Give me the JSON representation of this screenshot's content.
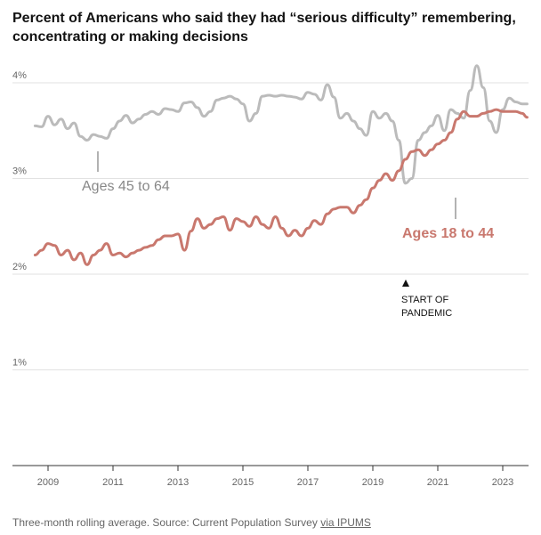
{
  "title": "Percent of Americans who said they had “serious difficulty” remembering, concentrating or making decisions",
  "footer": {
    "note": "Three-month rolling average. Source: Current Population Survey",
    "link": "via IPUMS"
  },
  "chart_data": {
    "type": "line",
    "title": "Percent of Americans who said they had “serious difficulty” remembering, concentrating or making decisions",
    "xlabel": "",
    "ylabel": "",
    "xlim": [
      2008.6,
      2023.75
    ],
    "ylim": [
      0,
      4.2
    ],
    "x_ticks": [
      "2009",
      "2011",
      "2013",
      "2015",
      "2017",
      "2019",
      "2021",
      "2023"
    ],
    "y_ticks": [
      "1%",
      "2%",
      "3%",
      "4%"
    ],
    "grid": true,
    "series": [
      {
        "name": "Ages 45 to 64",
        "color": "#bbbbbb",
        "x": [
          2008.6,
          2008.8,
          2009.0,
          2009.2,
          2009.4,
          2009.6,
          2009.8,
          2010.0,
          2010.2,
          2010.4,
          2010.6,
          2010.8,
          2011.0,
          2011.2,
          2011.4,
          2011.6,
          2011.8,
          2012.0,
          2012.2,
          2012.4,
          2012.6,
          2012.8,
          2013.0,
          2013.2,
          2013.4,
          2013.6,
          2013.8,
          2014.0,
          2014.2,
          2014.4,
          2014.6,
          2014.8,
          2015.0,
          2015.2,
          2015.4,
          2015.6,
          2015.8,
          2016.0,
          2016.2,
          2016.4,
          2016.6,
          2016.8,
          2017.0,
          2017.2,
          2017.4,
          2017.6,
          2017.8,
          2018.0,
          2018.2,
          2018.4,
          2018.6,
          2018.8,
          2019.0,
          2019.2,
          2019.4,
          2019.6,
          2019.8,
          2020.0,
          2020.2,
          2020.4,
          2020.6,
          2020.8,
          2021.0,
          2021.2,
          2021.4,
          2021.6,
          2021.8,
          2022.0,
          2022.2,
          2022.4,
          2022.6,
          2022.8,
          2023.0,
          2023.2,
          2023.4,
          2023.6,
          2023.75
        ],
        "values": [
          3.55,
          3.54,
          3.65,
          3.56,
          3.62,
          3.52,
          3.58,
          3.44,
          3.4,
          3.46,
          3.44,
          3.42,
          3.52,
          3.6,
          3.66,
          3.58,
          3.62,
          3.67,
          3.7,
          3.67,
          3.73,
          3.72,
          3.7,
          3.79,
          3.8,
          3.74,
          3.65,
          3.7,
          3.82,
          3.84,
          3.86,
          3.83,
          3.78,
          3.6,
          3.68,
          3.86,
          3.87,
          3.86,
          3.87,
          3.86,
          3.85,
          3.83,
          3.9,
          3.88,
          3.82,
          3.98,
          3.85,
          3.63,
          3.68,
          3.6,
          3.52,
          3.45,
          3.7,
          3.63,
          3.68,
          3.6,
          3.4,
          2.95,
          3.0,
          3.4,
          3.48,
          3.55,
          3.66,
          3.5,
          3.72,
          3.68,
          3.63,
          3.92,
          4.18,
          3.95,
          3.6,
          3.48,
          3.72,
          3.84,
          3.8,
          3.78,
          3.78
        ]
      },
      {
        "name": "Ages 18 to 44",
        "color": "#c9786e",
        "x": [
          2008.6,
          2008.8,
          2009.0,
          2009.2,
          2009.4,
          2009.6,
          2009.8,
          2010.0,
          2010.2,
          2010.4,
          2010.6,
          2010.8,
          2011.0,
          2011.2,
          2011.4,
          2011.6,
          2011.8,
          2012.0,
          2012.2,
          2012.4,
          2012.6,
          2012.8,
          2013.0,
          2013.2,
          2013.4,
          2013.6,
          2013.8,
          2014.0,
          2014.2,
          2014.4,
          2014.6,
          2014.8,
          2015.0,
          2015.2,
          2015.4,
          2015.6,
          2015.8,
          2016.0,
          2016.2,
          2016.4,
          2016.6,
          2016.8,
          2017.0,
          2017.2,
          2017.4,
          2017.6,
          2017.8,
          2018.0,
          2018.2,
          2018.4,
          2018.6,
          2018.8,
          2019.0,
          2019.2,
          2019.4,
          2019.6,
          2019.8,
          2020.0,
          2020.2,
          2020.4,
          2020.6,
          2020.8,
          2021.0,
          2021.2,
          2021.4,
          2021.6,
          2021.8,
          2022.0,
          2022.2,
          2022.4,
          2022.6,
          2022.8,
          2023.0,
          2023.2,
          2023.4,
          2023.6,
          2023.75
        ],
        "values": [
          2.2,
          2.25,
          2.32,
          2.3,
          2.2,
          2.25,
          2.15,
          2.22,
          2.1,
          2.2,
          2.25,
          2.32,
          2.2,
          2.22,
          2.18,
          2.22,
          2.25,
          2.28,
          2.3,
          2.36,
          2.4,
          2.4,
          2.42,
          2.25,
          2.45,
          2.58,
          2.48,
          2.52,
          2.58,
          2.6,
          2.46,
          2.58,
          2.55,
          2.5,
          2.6,
          2.52,
          2.48,
          2.6,
          2.48,
          2.4,
          2.46,
          2.4,
          2.48,
          2.56,
          2.52,
          2.63,
          2.68,
          2.7,
          2.7,
          2.64,
          2.72,
          2.78,
          2.9,
          2.98,
          3.05,
          2.98,
          3.08,
          3.2,
          3.28,
          3.3,
          3.24,
          3.3,
          3.36,
          3.4,
          3.48,
          3.62,
          3.7,
          3.65,
          3.65,
          3.68,
          3.7,
          3.72,
          3.7,
          3.7,
          3.7,
          3.68,
          3.64
        ]
      }
    ],
    "annotations": [
      {
        "text": "Ages 45 to 64",
        "series": "Ages 45 to 64",
        "x": 2010.5,
        "y": 3.3
      },
      {
        "text": "Ages 18 to 44",
        "series": "Ages 18 to 44",
        "x": 2021.6,
        "y": 2.76
      },
      {
        "text_line1": "START OF",
        "text_line2": "PANDEMIC",
        "x": 2020.2
      }
    ]
  }
}
